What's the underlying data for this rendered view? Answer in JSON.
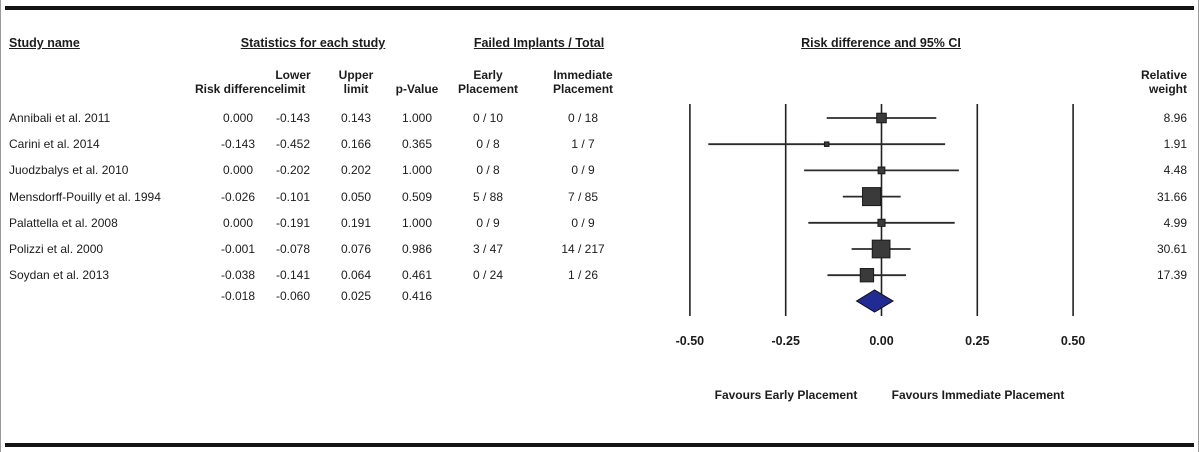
{
  "header": {
    "study_name": "Study name",
    "statistics_group": "Statistics for each study",
    "failed_group": "Failed Implants / Total",
    "plot_group": "Risk difference and 95% CI",
    "sub": {
      "risk_difference": "Risk difference",
      "lower_limit": "Lower limit",
      "upper_limit": "Upper limit",
      "p_value": "p-Value",
      "early": "Early Placement",
      "immediate": "Immediate Placement",
      "relative_weight": "Relative weight"
    }
  },
  "chart_data": {
    "type": "forest",
    "title": "Risk difference and 95% CI",
    "x_axis": {
      "range": [
        -0.5,
        0.5
      ],
      "tick_values": [
        -0.5,
        -0.25,
        0,
        0.25,
        0.5
      ],
      "tick_labels": [
        "-0.50",
        "-0.25",
        "0.00",
        "0.25",
        "0.50"
      ],
      "grid": true
    },
    "studies": [
      {
        "name": "Annibali et al. 2011",
        "risk_difference": "0.000",
        "lower": "-0.143",
        "upper": "0.143",
        "p_value": "1.000",
        "early": "0 / 10",
        "immediate": "0 / 18",
        "weight": "8.96"
      },
      {
        "name": "Carini et al. 2014",
        "risk_difference": "-0.143",
        "lower": "-0.452",
        "upper": "0.166",
        "p_value": "0.365",
        "early": "0 / 8",
        "immediate": "1 / 7",
        "weight": "1.91"
      },
      {
        "name": "Juodzbalys  et al. 2010",
        "risk_difference": "0.000",
        "lower": "-0.202",
        "upper": "0.202",
        "p_value": "1.000",
        "early": "0 / 8",
        "immediate": "0 / 9",
        "weight": "4.48"
      },
      {
        "name": "Mensdorff-Pouilly et al. 1994",
        "risk_difference": "-0.026",
        "lower": "-0.101",
        "upper": "0.050",
        "p_value": "0.509",
        "early": "5 / 88",
        "immediate": "7 / 85",
        "weight": "31.66"
      },
      {
        "name": "Palattella et al. 2008",
        "risk_difference": "0.000",
        "lower": "-0.191",
        "upper": "0.191",
        "p_value": "1.000",
        "early": "0 / 9",
        "immediate": "0 / 9",
        "weight": "4.99"
      },
      {
        "name": "Polizzi et al. 2000",
        "risk_difference": "-0.001",
        "lower": "-0.078",
        "upper": "0.076",
        "p_value": "0.986",
        "early": "3 / 47",
        "immediate": "14 / 217",
        "weight": "30.61"
      },
      {
        "name": "Soydan et al. 2013",
        "risk_difference": "-0.038",
        "lower": "-0.141",
        "upper": "0.064",
        "p_value": "0.461",
        "early": "0 / 24",
        "immediate": "1 / 26",
        "weight": "17.39"
      }
    ],
    "summary": {
      "risk_difference": "-0.018",
      "lower": "-0.060",
      "upper": "0.025",
      "p_value": "0.416"
    },
    "footers": {
      "left": "Favours Early Placement",
      "right": "Favours Immediate Placement"
    },
    "colors": {
      "marker": "#3a3a3a",
      "marker_edge": "#1a1a1a",
      "diamond": "#222a94",
      "line": "#2b2b2b",
      "grid": "#222222"
    }
  }
}
